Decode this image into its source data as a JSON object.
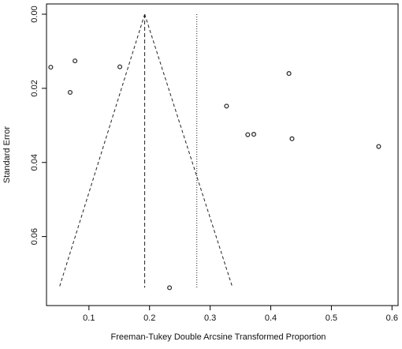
{
  "chart_data": {
    "type": "scatter",
    "title": "",
    "xlabel": "Freeman-Tukey Double Arcsine Transformed Proportion",
    "ylabel": "Standard Error",
    "xlim": [
      0.03,
      0.61
    ],
    "ylim": [
      0.0,
      0.075
    ],
    "y_reversed": true,
    "x_ticks": [
      0.1,
      0.2,
      0.3,
      0.4,
      0.5,
      0.6
    ],
    "x_tick_labels": [
      "0.1",
      "0.2",
      "0.3",
      "0.4",
      "0.5",
      "0.6"
    ],
    "y_ticks": [
      0.0,
      0.02,
      0.04,
      0.06
    ],
    "y_tick_labels": [
      "0.00",
      "0.02",
      "0.04",
      "0.06"
    ],
    "grid": false,
    "points": [
      {
        "x": 0.037,
        "y": 0.0143
      },
      {
        "x": 0.077,
        "y": 0.0126
      },
      {
        "x": 0.069,
        "y": 0.0211
      },
      {
        "x": 0.151,
        "y": 0.0142
      },
      {
        "x": 0.233,
        "y": 0.0738
      },
      {
        "x": 0.327,
        "y": 0.0248
      },
      {
        "x": 0.362,
        "y": 0.0325
      },
      {
        "x": 0.372,
        "y": 0.0324
      },
      {
        "x": 0.43,
        "y": 0.016
      },
      {
        "x": 0.435,
        "y": 0.0336
      },
      {
        "x": 0.578,
        "y": 0.0357
      }
    ],
    "pooled_estimate": 0.192,
    "reference_line": 0.278,
    "funnel": {
      "apex": {
        "x": 0.192,
        "y": 0.0
      },
      "base_left": {
        "x": 0.051,
        "y": 0.0738
      },
      "base_right": {
        "x": 0.337,
        "y": 0.0738
      }
    },
    "colors": {
      "points": "#333333",
      "lines": "#222222"
    }
  }
}
